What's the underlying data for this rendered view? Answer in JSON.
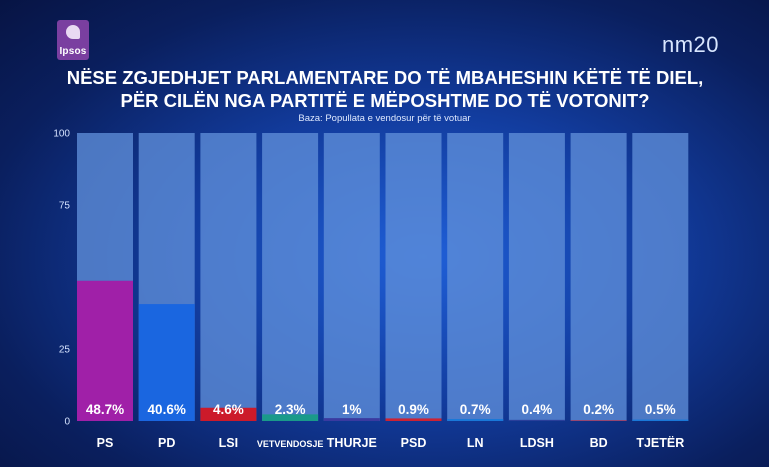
{
  "brand": {
    "logo_text": "Ipsos",
    "channel": "nm20"
  },
  "chart_data": {
    "type": "bar",
    "title": "NËSE ZGJEDHJET PARLAMENTARE DO TË MBAHESHIN KËTË TË DIEL, PËR CILËN NGA PARTITË E MËPOSHTME DO TË VOTONIT?",
    "title_lines": [
      "NËSE ZGJEDHJET PARLAMENTARE DO TË MBAHESHIN KËTË TË DIEL,",
      "PËR CILËN NGA PARTITË E MËPOSHTME DO TË VOTONIT?"
    ],
    "subtitle": "Baza: Popullata e vendosur për të votuar",
    "categories": [
      "PS",
      "PD",
      "LSI",
      "VETVENDOSJE",
      "THURJE",
      "PSD",
      "LN",
      "LDSH",
      "BD",
      "TJETËR"
    ],
    "values": [
      48.7,
      40.6,
      4.6,
      2.3,
      1,
      0.9,
      0.7,
      0.4,
      0.2,
      0.5
    ],
    "value_labels": [
      "48.7%",
      "40.6%",
      "4.6%",
      "2.3%",
      "1%",
      "0.9%",
      "0.7%",
      "0.4%",
      "0.2%",
      "0.5%"
    ],
    "colors": [
      "#a020a8",
      "#1a66e0",
      "#cc1a2a",
      "#1a9a8a",
      "#3a3aa0",
      "#cc2233",
      "#1a78d8",
      "#2a3f9a",
      "#cc2233",
      "#1a78d8"
    ],
    "track_color": "#5f8ed8",
    "y_ticks": [
      0,
      25,
      75,
      100
    ],
    "ylim": [
      0,
      100
    ],
    "grid": false,
    "legend": "none"
  }
}
